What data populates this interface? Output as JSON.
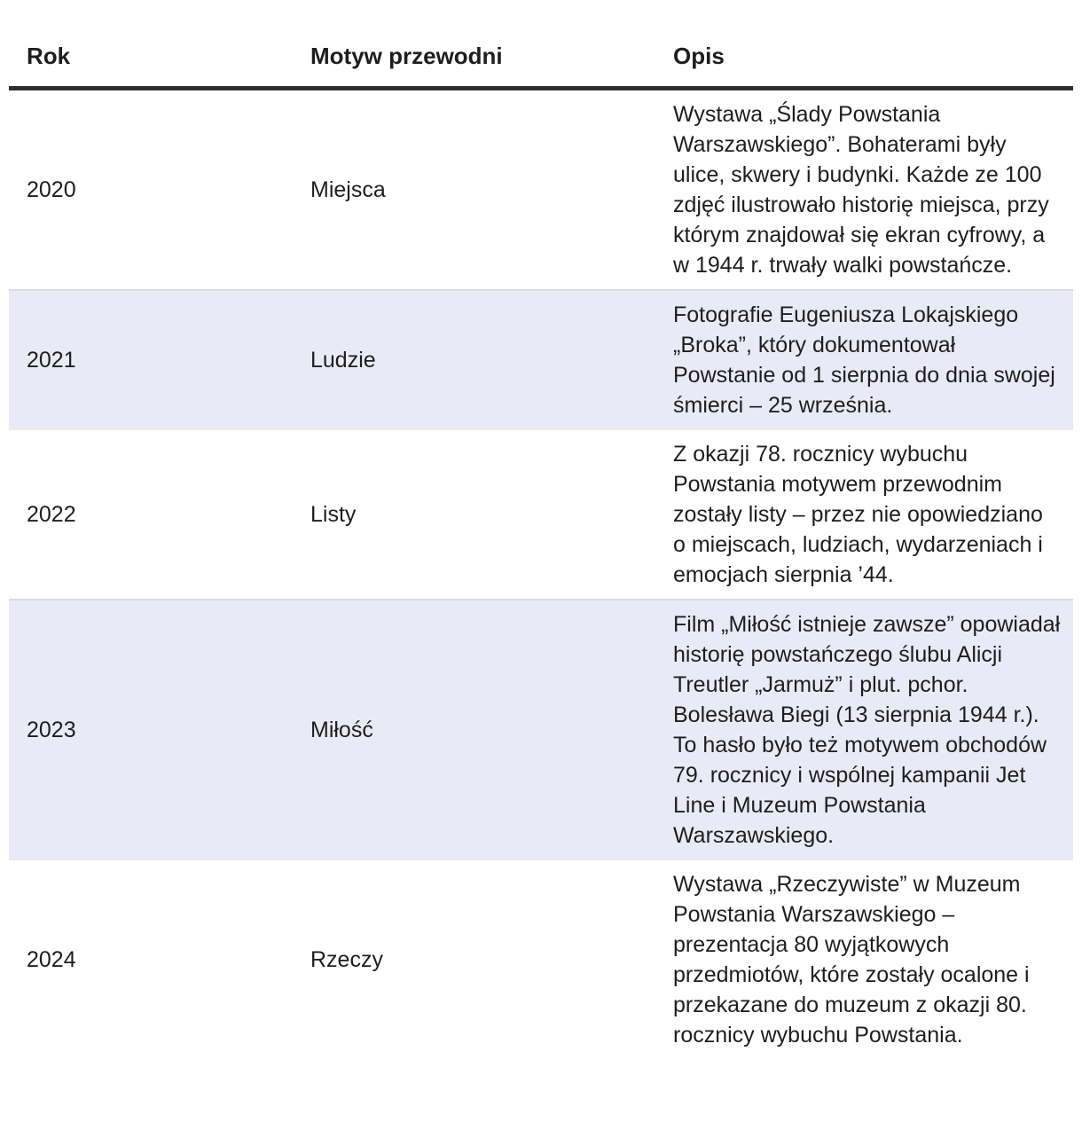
{
  "table": {
    "columns": [
      {
        "label": "Rok"
      },
      {
        "label": "Motyw przewodni"
      },
      {
        "label": "Opis"
      }
    ],
    "rows": [
      {
        "rok": "2020",
        "motyw": "Miejsca",
        "opis": "Wystawa „Ślady Powstania Warszawskiego”. Bohaterami były ulice, skwery i budynki. Każde ze 100 zdjęć ilustrowało historię miejsca, przy którym znajdował się ekran cyfrowy, a w 1944 r. trwały walki powstańcze.",
        "shaded": false
      },
      {
        "rok": "2021",
        "motyw": "Ludzie",
        "opis": "Fotografie Eugeniusza Lokajskiego „Broka”, który dokumentował Powstanie od 1 sierpnia do dnia swojej śmierci – 25 września.",
        "shaded": true
      },
      {
        "rok": "2022",
        "motyw": "Listy",
        "opis": "Z okazji 78. rocznicy wybuchu Powstania motywem przewodnim zostały listy – przez nie opowiedziano o miejscach, ludziach, wydarzeniach i emocjach sierpnia ’44.",
        "shaded": false
      },
      {
        "rok": "2023",
        "motyw": "Miłość",
        "opis": "Film „Miłość istnieje zawsze” opowiadał historię powstańczego ślubu Alicji Treutler „Jarmuż” i plut. pchor. Bolesława Biegi (13 sierpnia 1944 r.). To hasło było też motywem obchodów 79. rocznicy i wspólnej kampanii Jet Line i Muzeum Powstania Warszawskiego.",
        "shaded": true
      },
      {
        "rok": "2024",
        "motyw": "Rzeczy",
        "opis": "Wystawa „Rzeczywiste” w Muzeum Powstania Warszawskiego – prezentacja 80 wyjątkowych przedmiotów, które zostały ocalone i przekazane do muzeum z okazji 80. rocznicy wybuchu Powstania.",
        "shaded": false
      }
    ],
    "colors": {
      "shaded_row_bg": "#e9eaf6",
      "header_rule": "#2f2f2f",
      "text": "#1e1e1e",
      "page_bg": "#ffffff"
    }
  }
}
